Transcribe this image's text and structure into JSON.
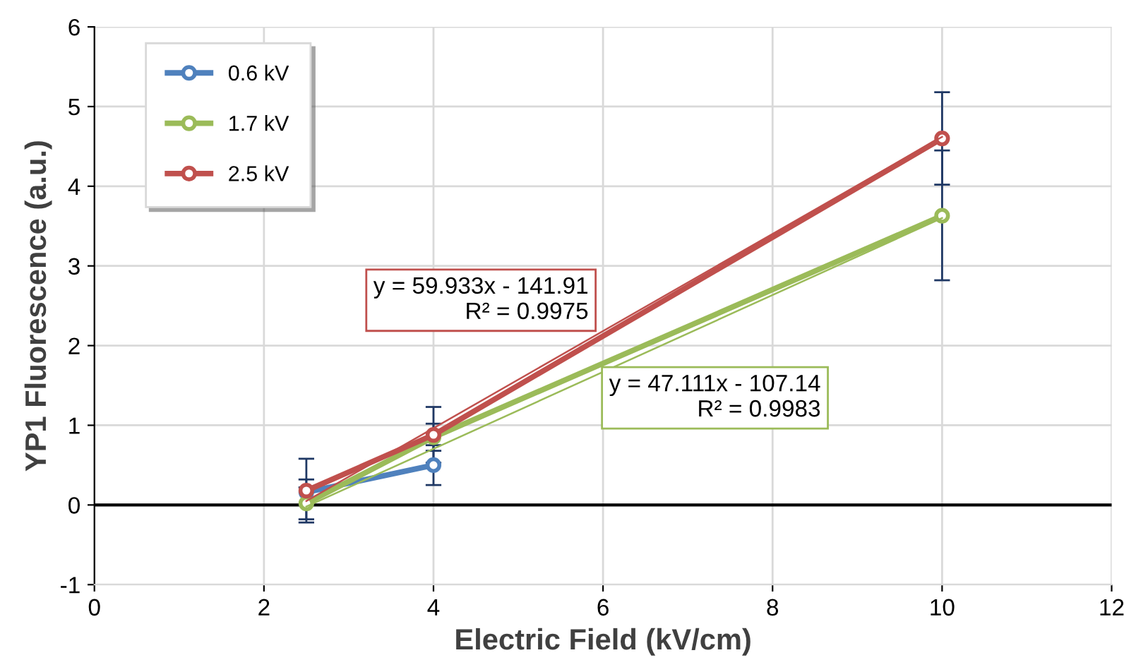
{
  "chart_data": {
    "type": "line",
    "xlabel": "Electric Field (kV/cm)",
    "ylabel": "YP1 Fluorescence (a.u.)",
    "x": [
      2.5,
      4,
      10
    ],
    "series": [
      {
        "name": "0.6 kV",
        "color": "#4f81bd",
        "x": [
          2.5,
          4
        ],
        "values": [
          0.16,
          0.5
        ],
        "errors": [
          [
            0.0,
            0.32
          ],
          [
            0.25,
            0.75
          ]
        ]
      },
      {
        "name": "1.7 kV",
        "color": "#9bbb59",
        "values": [
          0.02,
          0.85,
          3.63
        ],
        "errors": [
          [
            -0.18,
            0.22
          ],
          [
            0.68,
            1.02
          ],
          [
            2.82,
            4.45
          ]
        ]
      },
      {
        "name": "2.5 kV",
        "color": "#c0504d",
        "values": [
          0.18,
          0.88,
          4.6
        ],
        "errors": [
          [
            -0.22,
            0.58
          ],
          [
            0.53,
            1.23
          ],
          [
            4.02,
            5.18
          ]
        ]
      },
      {
        "type": "line",
        "color": "#c0504d",
        "x": [
          2.5,
          10
        ],
        "values": [
          0.05,
          4.62
        ],
        "marker": "none"
      },
      {
        "type": "line",
        "color": "#9bbb59",
        "x": [
          2.5,
          10
        ],
        "values": [
          -0.02,
          3.6
        ],
        "marker": "none"
      }
    ],
    "annotations": [
      "y = 59.933x - 141.91\nR² = 0.9975",
      "y = 47.111x - 107.14\nR² = 0.9983"
    ],
    "xlim": [
      0,
      12
    ],
    "xticks": [
      0,
      2,
      4,
      6,
      8,
      10,
      12
    ],
    "ylim": [
      -1,
      6
    ],
    "yticks": [
      -1,
      0,
      1,
      2,
      3,
      4,
      5,
      6
    ],
    "ref_lines": [
      {
        "axis": "y",
        "value": 0,
        "color": "#000000"
      }
    ],
    "grid": true,
    "legend": "top left",
    "marker": "circle",
    "line_style": "solid"
  }
}
